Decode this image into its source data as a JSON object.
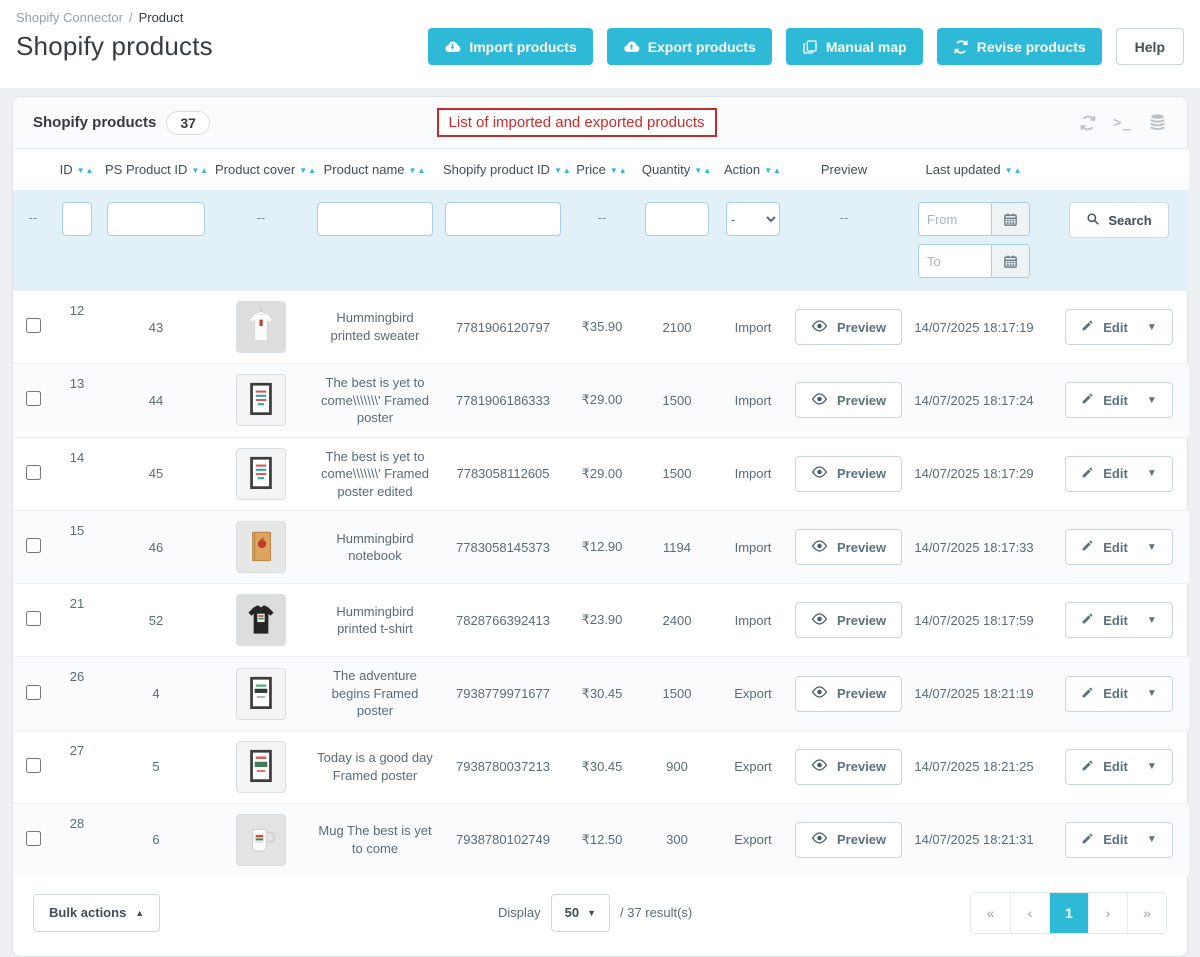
{
  "colors": {
    "accent": "#2eb9d7",
    "annotation_red": "#cc2b2b"
  },
  "breadcrumb": {
    "section": "Shopify Connector",
    "separator": "/",
    "page": "Product"
  },
  "page_title": "Shopify products",
  "toolbar": {
    "buttons": [
      {
        "label": "Import products",
        "icon": "cloud-download-icon"
      },
      {
        "label": "Export products",
        "icon": "cloud-upload-icon"
      },
      {
        "label": "Manual map",
        "icon": "copy-pages-icon"
      },
      {
        "label": "Revise products",
        "icon": "refresh-icon"
      }
    ],
    "help_label": "Help"
  },
  "panel": {
    "title": "Shopify products",
    "count": "37",
    "annotation": "List of imported and exported products",
    "header_icons": [
      "refresh-icon",
      "terminal-icon",
      "database-icon"
    ]
  },
  "table": {
    "headers": [
      {
        "label": "ID",
        "sortable": true
      },
      {
        "label": "PS Product ID",
        "sortable": true
      },
      {
        "label": "Product cover",
        "sortable": true
      },
      {
        "label": "Product name",
        "sortable": true
      },
      {
        "label": "Shopify product ID",
        "sortable": true
      },
      {
        "label": "Price",
        "sortable": true
      },
      {
        "label": "Quantity",
        "sortable": true
      },
      {
        "label": "Action",
        "sortable": true
      },
      {
        "label": "Preview",
        "sortable": false
      },
      {
        "label": "Last updated",
        "sortable": true
      }
    ],
    "filter": {
      "empty_marker": "--",
      "action_value": "-",
      "date_from_placeholder": "From",
      "date_to_placeholder": "To",
      "search_label": "Search"
    },
    "preview_label": "Preview",
    "edit_label": "Edit",
    "rows": [
      {
        "id": "12",
        "ps_product_id": "43",
        "cover": "sweater",
        "name": "Hummingbird printed sweater",
        "shopify_product_id": "7781906120797",
        "price": "₹35.90",
        "quantity": "2100",
        "action": "Import",
        "last_updated": "14/07/2025 18:17:19"
      },
      {
        "id": "13",
        "ps_product_id": "44",
        "cover": "poster",
        "name": "The best is yet to come\\\\\\\\\\\\\\' Framed poster",
        "shopify_product_id": "7781906186333",
        "price": "₹29.00",
        "quantity": "1500",
        "action": "Import",
        "last_updated": "14/07/2025 18:17:24"
      },
      {
        "id": "14",
        "ps_product_id": "45",
        "cover": "poster",
        "name": "The best is yet to come\\\\\\\\\\\\\\' Framed poster edited",
        "shopify_product_id": "7783058112605",
        "price": "₹29.00",
        "quantity": "1500",
        "action": "Import",
        "last_updated": "14/07/2025 18:17:29"
      },
      {
        "id": "15",
        "ps_product_id": "46",
        "cover": "notebook",
        "name": "Hummingbird notebook",
        "shopify_product_id": "7783058145373",
        "price": "₹12.90",
        "quantity": "1194",
        "action": "Import",
        "last_updated": "14/07/2025 18:17:33"
      },
      {
        "id": "21",
        "ps_product_id": "52",
        "cover": "tshirt",
        "name": "Hummingbird printed t-shirt",
        "shopify_product_id": "7828766392413",
        "price": "₹23.90",
        "quantity": "2400",
        "action": "Import",
        "last_updated": "14/07/2025 18:17:59"
      },
      {
        "id": "26",
        "ps_product_id": "4",
        "cover": "poster-adventure",
        "name": "The adventure begins Framed poster",
        "shopify_product_id": "7938779971677",
        "price": "₹30.45",
        "quantity": "1500",
        "action": "Export",
        "last_updated": "14/07/2025 18:21:19"
      },
      {
        "id": "27",
        "ps_product_id": "5",
        "cover": "poster-today",
        "name": "Today is a good day Framed poster",
        "shopify_product_id": "7938780037213",
        "price": "₹30.45",
        "quantity": "900",
        "action": "Export",
        "last_updated": "14/07/2025 18:21:25"
      },
      {
        "id": "28",
        "ps_product_id": "6",
        "cover": "mug",
        "name": "Mug The best is yet to come",
        "shopify_product_id": "7938780102749",
        "price": "₹12.50",
        "quantity": "300",
        "action": "Export",
        "last_updated": "14/07/2025 18:21:31"
      }
    ]
  },
  "footer": {
    "bulk_actions_label": "Bulk actions",
    "display_label": "Display",
    "page_size": "50",
    "results_label": "/ 37 result(s)",
    "pagination": {
      "first": "«",
      "prev": "‹",
      "current": "1",
      "next": "›",
      "last": "»"
    }
  }
}
